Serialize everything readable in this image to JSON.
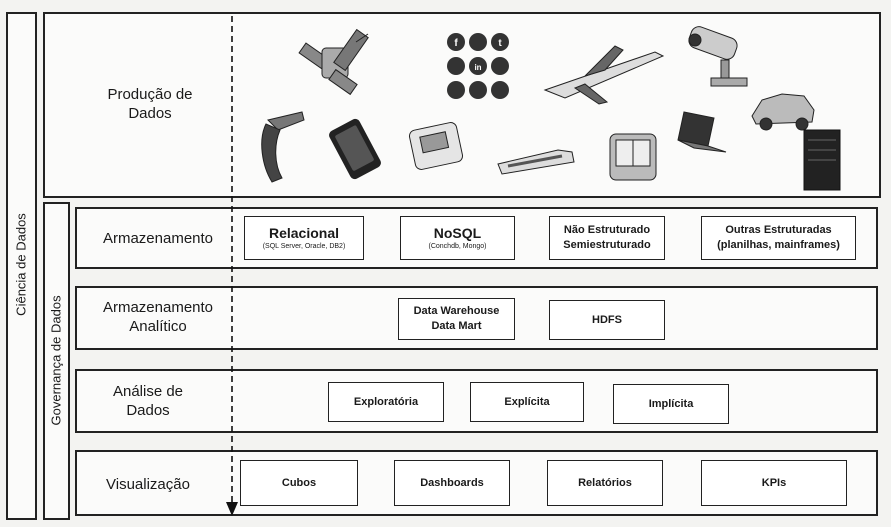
{
  "labels": {
    "ciencia": "Ciência de Dados",
    "governanca": "Governança de Dados",
    "producao": "Produção de Dados"
  },
  "producao_icons": [
    "satellite-icon",
    "social-media-icon",
    "airplane-icon",
    "security-camera-icon",
    "fuel-pump-icon",
    "smartphone-icon",
    "meter-icon",
    "train-icon",
    "tablet-icon",
    "laptop-icon",
    "car-icon",
    "server-icon"
  ],
  "rows": [
    {
      "label": "Armazenamento",
      "boxes": [
        {
          "title": "Relacional",
          "subtitle": "(SQL Server, Oracle, DB2)"
        },
        {
          "title": "NoSQL",
          "subtitle": "(Conchdb, Mongo)"
        },
        {
          "title": "Não Estruturado",
          "line2": "Semiestruturado"
        },
        {
          "title": "Outras Estruturadas",
          "line2": "(planilhas, mainframes)"
        }
      ]
    },
    {
      "label": "Armazenamento Analítico",
      "boxes": [
        {
          "title": "Data Warehouse",
          "line2": "Data Mart"
        },
        {
          "title": "HDFS"
        }
      ]
    },
    {
      "label": "Análise de Dados",
      "boxes": [
        {
          "title": "Exploratória"
        },
        {
          "title": "Explícita"
        },
        {
          "title": "Implícita"
        }
      ]
    },
    {
      "label": "Visualização",
      "boxes": [
        {
          "title": "Cubos"
        },
        {
          "title": "Dashboards"
        },
        {
          "title": "Relatórios"
        },
        {
          "title": "KPIs"
        }
      ]
    }
  ]
}
